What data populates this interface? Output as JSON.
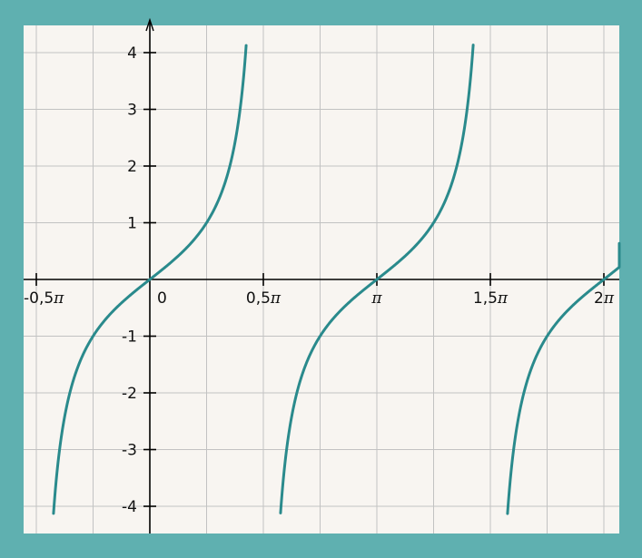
{
  "colors": {
    "frame": "#5fb0b0",
    "plot_background": "#f8f5f1",
    "grid": "#c2c2c2",
    "axis": "#000000",
    "curve": "#2a8a8c"
  },
  "chart_data": {
    "type": "line",
    "title": "",
    "xlabel": "",
    "ylabel": "",
    "function": "tan(x)",
    "xlim": [
      -1.9,
      6.85
    ],
    "ylim": [
      -4.4,
      4.4
    ],
    "grid": true,
    "x_ticks": [
      {
        "value": -1.5708,
        "prefix": "-0,5",
        "pi": "π"
      },
      {
        "value": 0,
        "prefix": "0",
        "pi": ""
      },
      {
        "value": 1.5708,
        "prefix": "0,5",
        "pi": "π"
      },
      {
        "value": 3.1416,
        "prefix": "",
        "pi": "π"
      },
      {
        "value": 4.7124,
        "prefix": "1,5",
        "pi": "π"
      },
      {
        "value": 6.2832,
        "prefix": "2",
        "pi": "π"
      }
    ],
    "y_ticks": [
      {
        "value": 4,
        "label": "4"
      },
      {
        "value": 3,
        "label": "3"
      },
      {
        "value": 2,
        "label": "2"
      },
      {
        "value": 1,
        "label": "1"
      },
      {
        "value": -1,
        "label": "-1"
      },
      {
        "value": -2,
        "label": "-2"
      },
      {
        "value": -3,
        "label": "-3"
      },
      {
        "value": -4,
        "label": "-4"
      }
    ],
    "series": [
      {
        "branch_x_range": [
          -1.333,
          1.333
        ]
      },
      {
        "branch_x_range": [
          1.809,
          4.475
        ]
      },
      {
        "branch_x_range": [
          4.95,
          6.85
        ]
      }
    ]
  }
}
